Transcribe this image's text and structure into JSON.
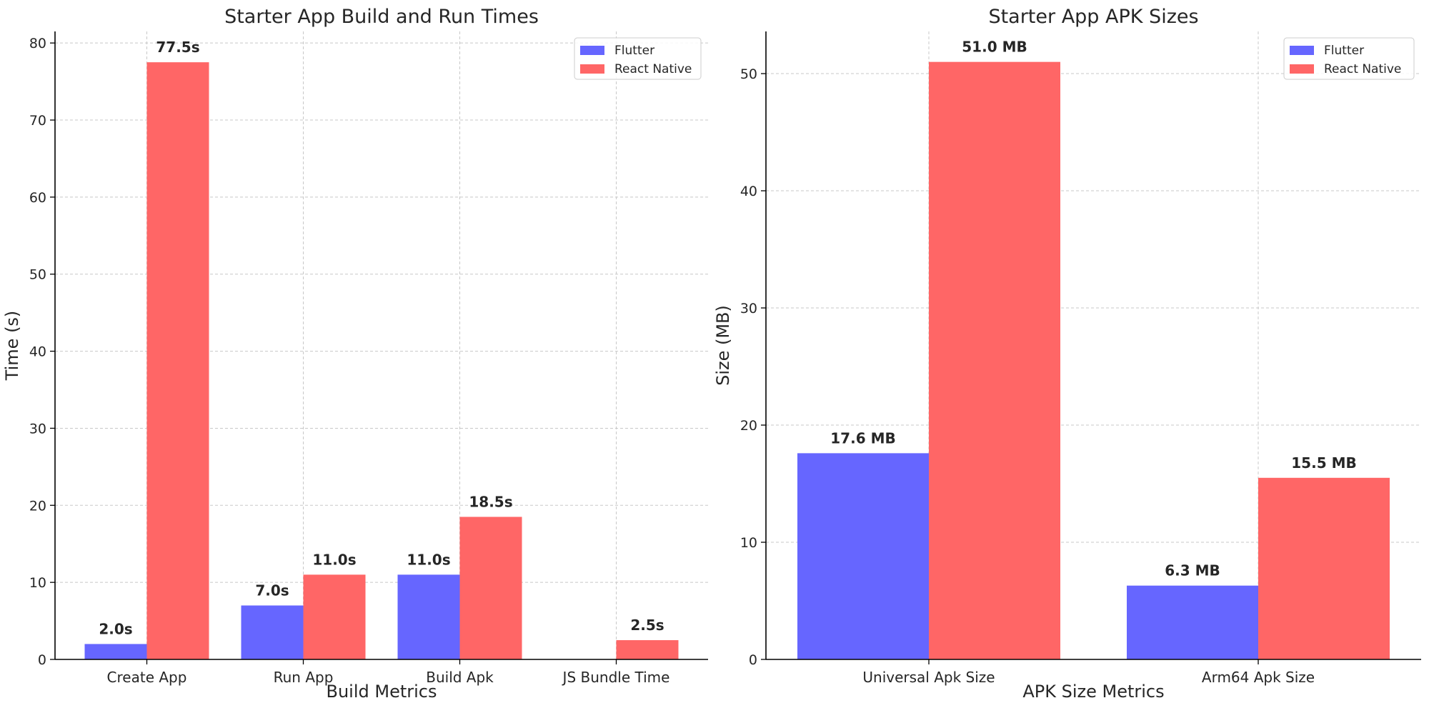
{
  "chart_data": [
    {
      "type": "bar",
      "title": "Starter App Build and Run Times",
      "xlabel": "Build Metrics",
      "ylabel": "Time (s)",
      "categories": [
        "Create App",
        "Run App",
        "Build Apk",
        "JS Bundle Time"
      ],
      "series": [
        {
          "name": "Flutter",
          "color": "#6666ff",
          "values": [
            2.0,
            7.0,
            11.0,
            null
          ],
          "labels": [
            "2.0s",
            "7.0s",
            "11.0s",
            null
          ]
        },
        {
          "name": "React Native",
          "color": "#ff6666",
          "values": [
            77.5,
            11.0,
            18.5,
            2.5
          ],
          "labels": [
            "77.5s",
            "11.0s",
            "18.5s",
            "2.5s"
          ]
        }
      ],
      "ylim": [
        0,
        81.5
      ],
      "yticks": [
        0,
        10,
        20,
        30,
        40,
        50,
        60,
        70,
        80
      ],
      "grid": true,
      "legend": "top-right"
    },
    {
      "type": "bar",
      "title": "Starter App APK Sizes",
      "xlabel": "APK Size Metrics",
      "ylabel": "Size (MB)",
      "categories": [
        "Universal Apk Size",
        "Arm64 Apk Size"
      ],
      "series": [
        {
          "name": "Flutter",
          "color": "#6666ff",
          "values": [
            17.6,
            6.3
          ],
          "labels": [
            "17.6 MB",
            "6.3 MB"
          ]
        },
        {
          "name": "React Native",
          "color": "#ff6666",
          "values": [
            51.0,
            15.5
          ],
          "labels": [
            "51.0 MB",
            "15.5 MB"
          ]
        }
      ],
      "ylim": [
        0,
        53.6
      ],
      "yticks": [
        0,
        10,
        20,
        30,
        40,
        50
      ],
      "grid": true,
      "legend": "top-right"
    }
  ]
}
